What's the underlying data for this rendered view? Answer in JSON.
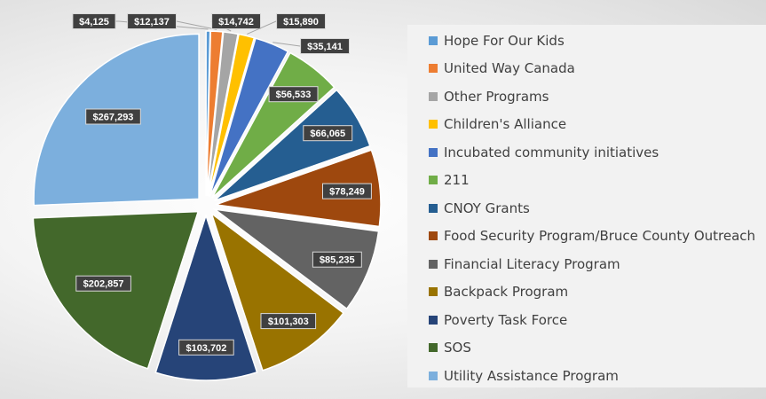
{
  "chart_data": {
    "type": "pie",
    "title": "",
    "categories": [
      "Hope For Our Kids",
      "United Way Canada",
      "Other Programs",
      "Children's Alliance",
      "Incubated community initiatives",
      "211",
      "CNOY Grants",
      "Food Security Program/Bruce County Outreach",
      "Financial Literacy Program",
      "Backpack Program",
      "Poverty Task Force",
      "SOS",
      "Utility Assistance Program"
    ],
    "values": [
      4125,
      12137,
      14742,
      15890,
      35141,
      56533,
      66065,
      78249,
      85235,
      101303,
      103702,
      202857,
      267293
    ],
    "value_labels": [
      "$4,125",
      "$12,137",
      "$14,742",
      "$15,890",
      "$35,141",
      "$56,533",
      "$66,065",
      "$78,249",
      "$85,235",
      "$101,303",
      "$103,702",
      "$202,857",
      "$267,293"
    ],
    "colors": [
      "#5b9bd5",
      "#ed7d31",
      "#a5a5a5",
      "#ffc000",
      "#4472c4",
      "#70ad47",
      "#255e91",
      "#9e480e",
      "#636363",
      "#997300",
      "#264478",
      "#43682b",
      "#7cafdd"
    ],
    "legend_position": "right",
    "exploded": true
  }
}
